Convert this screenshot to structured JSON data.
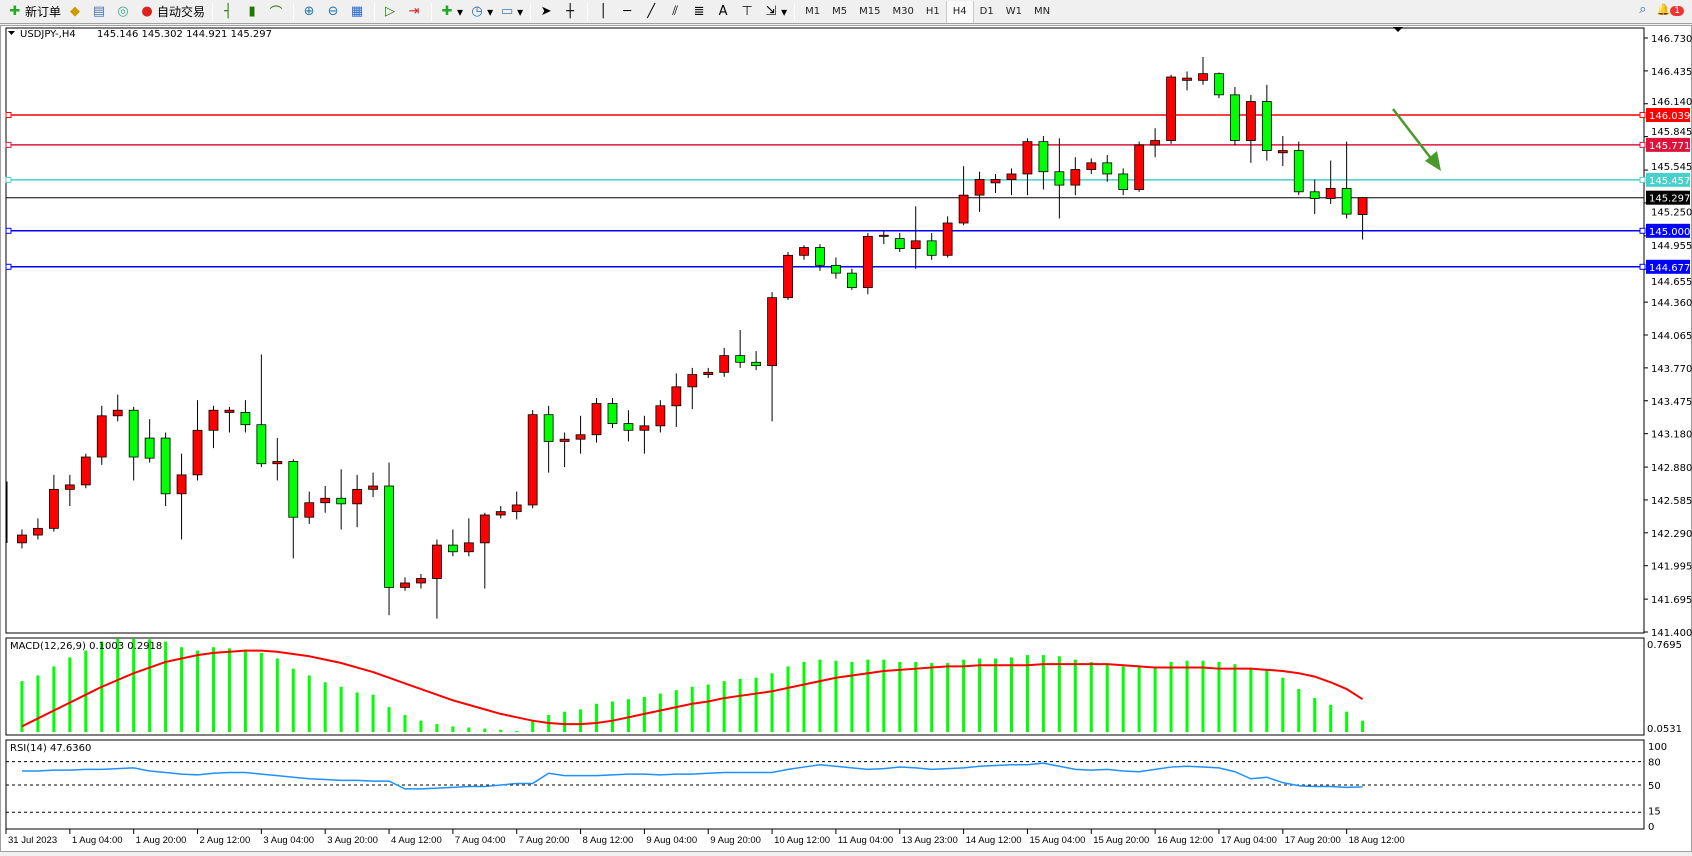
{
  "toolbar": {
    "new_order": "新订单",
    "auto_trading": "自动交易",
    "icons": [
      "new-order-icon",
      "market-watch-icon",
      "navigator-icon",
      "signals-icon",
      "auto-trading-icon",
      "bar-chart-icon",
      "candlestick-icon",
      "line-chart-icon",
      "zoom-in-icon",
      "zoom-out-icon",
      "tile-windows-icon",
      "autoscroll-icon",
      "chart-shift-icon",
      "indicators-icon",
      "periods-icon",
      "templates-icon",
      "cursor-icon",
      "crosshair-icon",
      "vertical-line-icon",
      "horizontal-line-icon",
      "trendline-icon",
      "equidistant-channel-icon",
      "fibonacci-icon",
      "text-icon",
      "text-label-icon",
      "arrows-icon"
    ],
    "timeframes": [
      "M1",
      "M5",
      "M15",
      "M30",
      "H1",
      "H4",
      "D1",
      "W1",
      "MN"
    ],
    "active_timeframe": "H4",
    "notification_count": "1"
  },
  "chart": {
    "symbol_title": "USDJPY-,H4",
    "ohlc_text": "145.146 145.302 144.921 145.297",
    "price_axis": [
      "146.730",
      "146.435",
      "146.140",
      "145.845",
      "145.545",
      "145.250",
      "144.955",
      "144.655",
      "144.360",
      "144.065",
      "143.770",
      "143.475",
      "143.180",
      "142.880",
      "142.585",
      "142.290",
      "141.995",
      "141.695",
      "141.400"
    ],
    "ylim": [
      141.4,
      146.73
    ],
    "current_price": "145.297",
    "lines": [
      {
        "price": 146.039,
        "label": "146.039",
        "color": "#ff0000"
      },
      {
        "price": 145.771,
        "label": "145.771",
        "color": "#dc143c"
      },
      {
        "price": 145.457,
        "label": "145.457",
        "color": "#48d1cc"
      },
      {
        "price": 145.0,
        "label": "145.000",
        "color": "#0000ff"
      },
      {
        "price": 144.677,
        "label": "144.677",
        "color": "#0000ff"
      }
    ],
    "bull_color": "#ff0000",
    "bear_color": "#00ff00",
    "ohlc": [
      [
        142.2,
        142.32,
        142.15,
        142.27
      ],
      [
        142.27,
        142.42,
        142.23,
        142.33
      ],
      [
        142.33,
        142.81,
        142.3,
        142.68
      ],
      [
        142.68,
        142.81,
        142.53,
        142.72
      ],
      [
        142.72,
        143.0,
        142.69,
        142.97
      ],
      [
        142.97,
        143.43,
        142.9,
        143.34
      ],
      [
        143.34,
        143.53,
        143.29,
        143.39
      ],
      [
        143.39,
        143.42,
        142.76,
        142.97
      ],
      [
        143.14,
        143.31,
        142.92,
        142.96
      ],
      [
        143.14,
        143.19,
        142.53,
        142.64
      ],
      [
        142.64,
        143.0,
        142.23,
        142.81
      ],
      [
        142.81,
        143.48,
        142.76,
        143.21
      ],
      [
        143.21,
        143.43,
        143.05,
        143.39
      ],
      [
        143.37,
        143.42,
        143.19,
        143.39
      ],
      [
        143.37,
        143.48,
        143.19,
        143.26
      ],
      [
        143.26,
        143.89,
        142.88,
        142.91
      ],
      [
        142.91,
        143.14,
        142.76,
        142.93
      ],
      [
        142.93,
        142.95,
        142.06,
        142.43
      ],
      [
        142.43,
        142.66,
        142.37,
        142.56
      ],
      [
        142.56,
        142.71,
        142.47,
        142.6
      ],
      [
        142.6,
        142.86,
        142.32,
        142.55
      ],
      [
        142.55,
        142.81,
        142.34,
        142.68
      ],
      [
        142.68,
        142.83,
        142.61,
        142.71
      ],
      [
        142.71,
        142.92,
        141.55,
        141.8
      ],
      [
        141.8,
        141.89,
        141.77,
        141.84
      ],
      [
        141.84,
        141.92,
        141.79,
        141.88
      ],
      [
        141.88,
        142.23,
        141.52,
        142.18
      ],
      [
        142.18,
        142.32,
        142.08,
        142.12
      ],
      [
        142.12,
        142.42,
        142.08,
        142.2
      ],
      [
        142.2,
        142.47,
        141.79,
        142.45
      ],
      [
        142.45,
        142.53,
        142.42,
        142.48
      ],
      [
        142.48,
        142.66,
        142.41,
        142.54
      ],
      [
        142.54,
        143.39,
        142.51,
        143.35
      ],
      [
        143.35,
        143.43,
        142.83,
        143.11
      ],
      [
        143.11,
        143.19,
        142.88,
        143.13
      ],
      [
        143.13,
        143.34,
        143.0,
        143.17
      ],
      [
        143.17,
        143.5,
        143.1,
        143.45
      ],
      [
        143.45,
        143.5,
        143.23,
        143.27
      ],
      [
        143.27,
        143.39,
        143.11,
        143.21
      ],
      [
        143.21,
        143.34,
        143.0,
        143.25
      ],
      [
        143.25,
        143.48,
        143.19,
        143.43
      ],
      [
        143.43,
        143.72,
        143.24,
        143.6
      ],
      [
        143.6,
        143.77,
        143.4,
        143.71
      ],
      [
        143.71,
        143.77,
        143.68,
        143.73
      ],
      [
        143.73,
        143.95,
        143.69,
        143.88
      ],
      [
        143.88,
        144.11,
        143.77,
        143.82
      ],
      [
        143.82,
        143.92,
        143.75,
        143.79
      ],
      [
        143.79,
        144.45,
        143.29,
        144.4
      ],
      [
        144.4,
        144.81,
        144.38,
        144.78
      ],
      [
        144.78,
        144.87,
        144.74,
        144.85
      ],
      [
        144.85,
        144.88,
        144.64,
        144.69
      ],
      [
        144.69,
        144.76,
        144.57,
        144.62
      ],
      [
        144.62,
        144.66,
        144.47,
        144.49
      ],
      [
        144.49,
        144.98,
        144.43,
        144.95
      ],
      [
        144.95,
        145.0,
        144.88,
        144.96
      ],
      [
        144.93,
        144.98,
        144.81,
        144.84
      ],
      [
        144.84,
        145.22,
        144.66,
        144.91
      ],
      [
        144.91,
        144.98,
        144.74,
        144.78
      ],
      [
        144.78,
        145.13,
        144.76,
        145.07
      ],
      [
        145.07,
        145.58,
        145.05,
        145.32
      ],
      [
        145.32,
        145.53,
        145.17,
        145.46
      ],
      [
        145.43,
        145.51,
        145.34,
        145.46
      ],
      [
        145.46,
        145.56,
        145.32,
        145.51
      ],
      [
        145.51,
        145.83,
        145.32,
        145.8
      ],
      [
        145.8,
        145.85,
        145.37,
        145.53
      ],
      [
        145.53,
        145.83,
        145.11,
        145.41
      ],
      [
        145.41,
        145.66,
        145.32,
        145.55
      ],
      [
        145.55,
        145.65,
        145.51,
        145.61
      ],
      [
        145.61,
        145.68,
        145.44,
        145.51
      ],
      [
        145.51,
        145.56,
        145.32,
        145.37
      ],
      [
        145.37,
        145.8,
        145.35,
        145.77
      ],
      [
        145.77,
        145.92,
        145.66,
        145.81
      ],
      [
        145.81,
        146.4,
        145.78,
        146.38
      ],
      [
        146.35,
        146.43,
        146.26,
        146.37
      ],
      [
        146.35,
        146.56,
        146.31,
        146.41
      ],
      [
        146.41,
        146.42,
        146.19,
        146.22
      ],
      [
        146.22,
        146.29,
        145.77,
        145.81
      ],
      [
        145.81,
        146.22,
        145.61,
        146.16
      ],
      [
        146.16,
        146.31,
        145.63,
        145.72
      ],
      [
        145.7,
        145.85,
        145.58,
        145.72
      ],
      [
        145.72,
        145.8,
        145.32,
        145.35
      ],
      [
        145.35,
        145.46,
        145.15,
        145.29
      ],
      [
        145.29,
        145.63,
        145.24,
        145.38
      ],
      [
        145.38,
        145.8,
        145.11,
        145.15
      ],
      [
        145.146,
        145.302,
        144.921,
        145.297
      ]
    ],
    "time_labels": [
      "31 Jul 2023",
      "1 Aug 04:00",
      "1 Aug 20:00",
      "2 Aug 12:00",
      "3 Aug 04:00",
      "3 Aug 20:00",
      "4 Aug 12:00",
      "7 Aug 04:00",
      "7 Aug 20:00",
      "8 Aug 12:00",
      "9 Aug 04:00",
      "9 Aug 20:00",
      "10 Aug 12:00",
      "11 Aug 04:00",
      "13 Aug 23:00",
      "14 Aug 12:00",
      "15 Aug 04:00",
      "15 Aug 20:00",
      "16 Aug 12:00",
      "17 Aug 04:00",
      "17 Aug 20:00",
      "18 Aug 12:00"
    ]
  },
  "macd": {
    "title": "MACD(12,26,9) 0.1003 0.2918",
    "axis_top": "0.7695",
    "axis_bottom": "0.0531",
    "ylim": [
      0,
      0.7695
    ],
    "hist_color": "#00ff00",
    "signal_color": "#ff0000",
    "histogram": [
      0.45,
      0.5,
      0.58,
      0.66,
      0.72,
      0.8,
      0.85,
      0.85,
      0.82,
      0.8,
      0.75,
      0.72,
      0.75,
      0.74,
      0.73,
      0.7,
      0.65,
      0.56,
      0.5,
      0.44,
      0.4,
      0.35,
      0.33,
      0.22,
      0.15,
      0.1,
      0.07,
      0.05,
      0.04,
      0.03,
      0.02,
      0.01,
      0.1,
      0.15,
      0.18,
      0.2,
      0.25,
      0.27,
      0.29,
      0.31,
      0.34,
      0.37,
      0.4,
      0.42,
      0.45,
      0.47,
      0.48,
      0.52,
      0.58,
      0.62,
      0.64,
      0.63,
      0.62,
      0.64,
      0.64,
      0.62,
      0.62,
      0.61,
      0.61,
      0.64,
      0.65,
      0.65,
      0.66,
      0.68,
      0.68,
      0.67,
      0.64,
      0.62,
      0.6,
      0.58,
      0.58,
      0.58,
      0.62,
      0.63,
      0.63,
      0.62,
      0.6,
      0.56,
      0.55,
      0.48,
      0.38,
      0.3,
      0.24,
      0.18,
      0.1
    ],
    "signal": [
      0.05,
      0.12,
      0.19,
      0.26,
      0.33,
      0.4,
      0.46,
      0.52,
      0.57,
      0.62,
      0.65,
      0.68,
      0.7,
      0.71,
      0.72,
      0.72,
      0.71,
      0.69,
      0.67,
      0.64,
      0.61,
      0.57,
      0.53,
      0.48,
      0.43,
      0.38,
      0.33,
      0.28,
      0.24,
      0.2,
      0.16,
      0.13,
      0.1,
      0.08,
      0.07,
      0.07,
      0.08,
      0.1,
      0.13,
      0.16,
      0.19,
      0.22,
      0.25,
      0.27,
      0.3,
      0.32,
      0.34,
      0.36,
      0.39,
      0.42,
      0.45,
      0.48,
      0.5,
      0.52,
      0.54,
      0.55,
      0.56,
      0.57,
      0.58,
      0.58,
      0.59,
      0.59,
      0.59,
      0.59,
      0.6,
      0.6,
      0.6,
      0.6,
      0.6,
      0.59,
      0.58,
      0.57,
      0.57,
      0.57,
      0.57,
      0.56,
      0.56,
      0.56,
      0.55,
      0.54,
      0.52,
      0.49,
      0.44,
      0.38,
      0.29
    ]
  },
  "rsi": {
    "title": "RSI(14) 47.6360",
    "levels": [
      80,
      50,
      15
    ],
    "axis_labels": [
      "100",
      "80",
      "50",
      "15",
      "0"
    ],
    "ylim": [
      0,
      100
    ],
    "color": "#1e90ff",
    "values": [
      68,
      68,
      69,
      69,
      70,
      70,
      71,
      72,
      68,
      66,
      64,
      63,
      65,
      66,
      66,
      64,
      62,
      60,
      58,
      57,
      56,
      56,
      55,
      55,
      45,
      45,
      46,
      47,
      48,
      48,
      50,
      52,
      52,
      65,
      62,
      62,
      62,
      63,
      64,
      64,
      63,
      64,
      64,
      65,
      66,
      66,
      66,
      66,
      70,
      73,
      76,
      74,
      72,
      70,
      71,
      73,
      72,
      70,
      71,
      72,
      74,
      75,
      76,
      76,
      78,
      74,
      70,
      69,
      70,
      68,
      67,
      70,
      73,
      74,
      73,
      72,
      67,
      58,
      60,
      53,
      49,
      48,
      48,
      47,
      47.636
    ]
  }
}
